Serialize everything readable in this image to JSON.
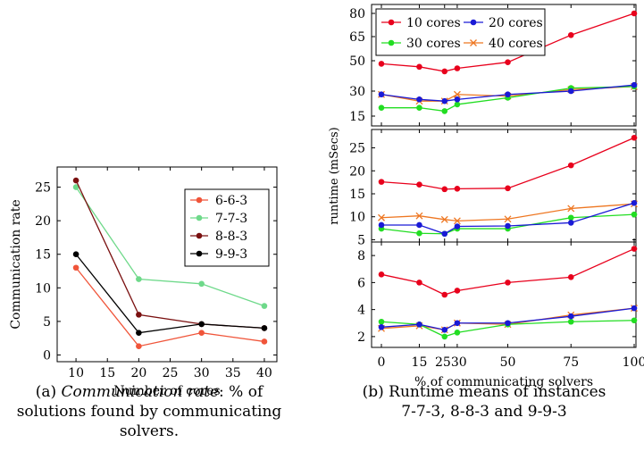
{
  "captions": {
    "a_prefix": "(a) ",
    "a_italic": "Communication rate",
    "a_rest_line1": ": % of",
    "a_line2": "solutions found by communicating",
    "a_line3": "solvers.",
    "b_line1": "(b) Runtime means of instances",
    "b_line2": "7-7-3, 8-8-3 and 9-9-3"
  },
  "colors": {
    "red": "#e8001c",
    "blue": "#1a1ad6",
    "green": "#22dd22",
    "orange": "#ee7722",
    "lineA_6": "#f0553a",
    "lineA_7": "#6ed98a",
    "lineA_8": "#7a1010",
    "lineA_9": "#000000"
  },
  "chart_data": [
    {
      "type": "line",
      "xlabel": "Number of cores",
      "ylabel": "Communication rate",
      "x": [
        10,
        20,
        30,
        40
      ],
      "xticks": [
        "10",
        "15",
        "20",
        "25",
        "30",
        "35",
        "40"
      ],
      "yticks": [
        "0",
        "5",
        "10",
        "15",
        "20",
        "25"
      ],
      "xlim": [
        7,
        42
      ],
      "ylim": [
        -1,
        28
      ],
      "legend": "top-right",
      "grid": false,
      "series": [
        {
          "name": "6-6-3",
          "values": [
            13,
            1.3,
            3.3,
            2
          ]
        },
        {
          "name": "7-7-3",
          "values": [
            25,
            11.3,
            10.6,
            7.3
          ]
        },
        {
          "name": "8-8-3",
          "values": [
            26,
            6,
            4.6,
            4
          ]
        },
        {
          "name": "9-9-3",
          "values": [
            15,
            3.3,
            4.6,
            4
          ]
        }
      ]
    },
    {
      "type": "line",
      "ylabel": "runtime (mSecs)",
      "xlabel": "% of communicating solvers",
      "x": [
        0,
        15,
        25,
        30,
        50,
        75,
        100
      ],
      "xticks": [
        "0",
        "15",
        "2530",
        "50",
        "75",
        "100"
      ],
      "legend": "top-left",
      "grid": false,
      "panels": [
        {
          "yticks": [
            "15",
            "30",
            "50",
            "65",
            "80"
          ],
          "series": [
            {
              "name": "10 cores",
              "values": [
                48,
                46,
                43,
                45,
                49,
                66,
                80
              ]
            },
            {
              "name": "20 cores",
              "values": [
                28,
                25,
                24,
                25,
                28,
                30,
                34
              ]
            },
            {
              "name": "30 cores",
              "values": [
                20,
                20,
                18,
                22,
                26,
                32,
                33
              ]
            },
            {
              "name": "40 cores",
              "values": [
                28,
                24,
                24,
                28,
                27,
                31,
                33
              ]
            }
          ]
        },
        {
          "yticks": [
            "5",
            "10",
            "15",
            "20",
            "25"
          ],
          "series": [
            {
              "name": "10 cores",
              "values": [
                17.6,
                17,
                16,
                16.1,
                16.2,
                21.2,
                27.2
              ]
            },
            {
              "name": "20 cores",
              "values": [
                8.2,
                8.2,
                6.3,
                7.9,
                8,
                8.7,
                13
              ]
            },
            {
              "name": "30 cores",
              "values": [
                7.4,
                6.4,
                6.3,
                7.4,
                7.4,
                9.8,
                10.5
              ]
            },
            {
              "name": "40 cores",
              "values": [
                9.8,
                10.2,
                9.4,
                9.1,
                9.5,
                11.8,
                12.8
              ]
            }
          ]
        },
        {
          "yticks": [
            "2",
            "4",
            "6",
            "8"
          ],
          "series": [
            {
              "name": "10 cores",
              "values": [
                6.6,
                6,
                5.1,
                5.4,
                6,
                6.4,
                8.5
              ]
            },
            {
              "name": "20 cores",
              "values": [
                2.7,
                2.9,
                2.5,
                3,
                3,
                3.5,
                4.1
              ]
            },
            {
              "name": "30 cores",
              "values": [
                3.1,
                2.9,
                2,
                2.3,
                2.9,
                3.1,
                3.2
              ]
            },
            {
              "name": "40 cores",
              "values": [
                2.6,
                2.8,
                2.5,
                3,
                2.9,
                3.6,
                4.1
              ]
            }
          ]
        }
      ]
    }
  ]
}
